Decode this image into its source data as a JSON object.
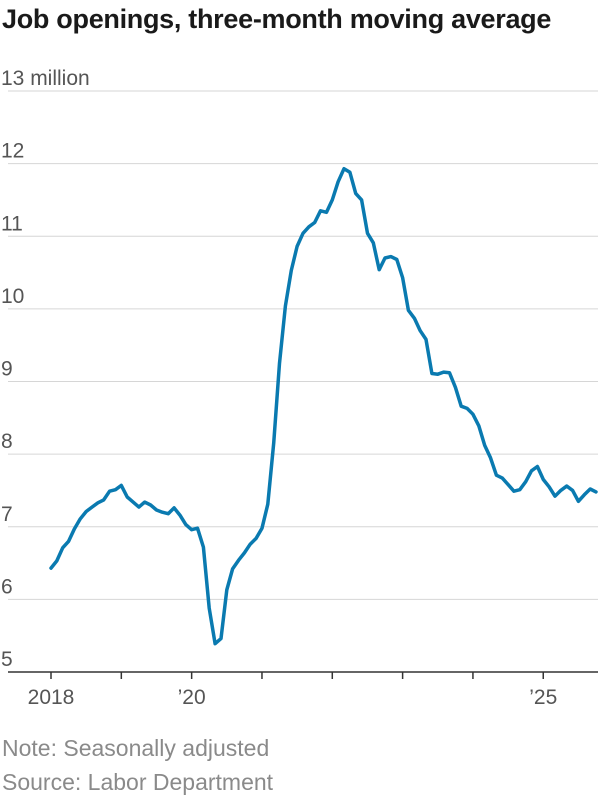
{
  "chart_data": {
    "type": "line",
    "title": "Job openings, three-month moving average",
    "unit_label": "13 million",
    "ylim": [
      5,
      13
    ],
    "y_ticks": [
      {
        "value": 13,
        "label": "13 million"
      },
      {
        "value": 12,
        "label": "12"
      },
      {
        "value": 11,
        "label": "11"
      },
      {
        "value": 10,
        "label": "10"
      },
      {
        "value": 9,
        "label": "9"
      },
      {
        "value": 8,
        "label": "8"
      },
      {
        "value": 7,
        "label": "7"
      },
      {
        "value": 6,
        "label": "6"
      },
      {
        "value": 5,
        "label": "5"
      }
    ],
    "xlim": [
      2018.0,
      2025.75
    ],
    "x_ticks": [
      2018,
      2019,
      2020,
      2021,
      2022,
      2023,
      2024,
      2025
    ],
    "x_tick_labels": [
      {
        "value": 2018,
        "label": "2018"
      },
      {
        "value": 2020,
        "label": "’20"
      },
      {
        "value": 2025,
        "label": "’25"
      }
    ],
    "grid": true,
    "line_color": "#0a7ab0",
    "series": [
      {
        "x": [
          2018.0,
          2018.083,
          2018.167,
          2018.25,
          2018.333,
          2018.417,
          2018.5,
          2018.583,
          2018.667,
          2018.75,
          2018.833,
          2018.917,
          2019.0,
          2019.083,
          2019.167,
          2019.25,
          2019.333,
          2019.417,
          2019.5,
          2019.583,
          2019.667,
          2019.75,
          2019.833,
          2019.917,
          2020.0,
          2020.083,
          2020.167,
          2020.25,
          2020.333,
          2020.417,
          2020.5,
          2020.583,
          2020.667,
          2020.75,
          2020.833,
          2020.917,
          2021.0,
          2021.083,
          2021.167,
          2021.25,
          2021.333,
          2021.417,
          2021.5,
          2021.583,
          2021.667,
          2021.75,
          2021.833,
          2021.917,
          2022.0,
          2022.083,
          2022.167,
          2022.25,
          2022.333,
          2022.417,
          2022.5,
          2022.583,
          2022.667,
          2022.75,
          2022.833,
          2022.917,
          2023.0,
          2023.083,
          2023.167,
          2023.25,
          2023.333,
          2023.417,
          2023.5,
          2023.583,
          2023.667,
          2023.75,
          2023.833,
          2023.917,
          2024.0,
          2024.083,
          2024.167,
          2024.25,
          2024.333,
          2024.417,
          2024.5,
          2024.583,
          2024.667,
          2024.75,
          2024.833,
          2024.917,
          2025.0,
          2025.083,
          2025.167,
          2025.25,
          2025.333,
          2025.417,
          2025.5,
          2025.583,
          2025.667,
          2025.75
        ],
        "values": [
          6.43,
          6.53,
          6.71,
          6.8,
          6.97,
          7.11,
          7.21,
          7.27,
          7.33,
          7.37,
          7.49,
          7.51,
          7.57,
          7.41,
          7.34,
          7.27,
          7.34,
          7.3,
          7.23,
          7.2,
          7.18,
          7.26,
          7.16,
          7.03,
          6.96,
          6.98,
          6.72,
          5.88,
          5.39,
          5.46,
          6.13,
          6.42,
          6.54,
          6.64,
          6.76,
          6.84,
          6.98,
          7.31,
          8.15,
          9.25,
          10.04,
          10.53,
          10.86,
          11.04,
          11.13,
          11.19,
          11.35,
          11.33,
          11.5,
          11.75,
          11.93,
          11.88,
          11.59,
          11.5,
          11.04,
          10.91,
          10.54,
          10.7,
          10.72,
          10.68,
          10.43,
          9.98,
          9.87,
          9.7,
          9.58,
          9.11,
          9.1,
          9.13,
          9.12,
          8.92,
          8.66,
          8.63,
          8.55,
          8.39,
          8.12,
          7.95,
          7.71,
          7.67,
          7.58,
          7.49,
          7.51,
          7.62,
          7.77,
          7.83,
          7.65,
          7.55,
          7.42,
          7.5,
          7.56,
          7.5,
          7.35,
          7.44,
          7.52,
          7.48
        ]
      }
    ],
    "note": "Note: Seasonally adjusted",
    "source": "Source: Labor Department"
  }
}
